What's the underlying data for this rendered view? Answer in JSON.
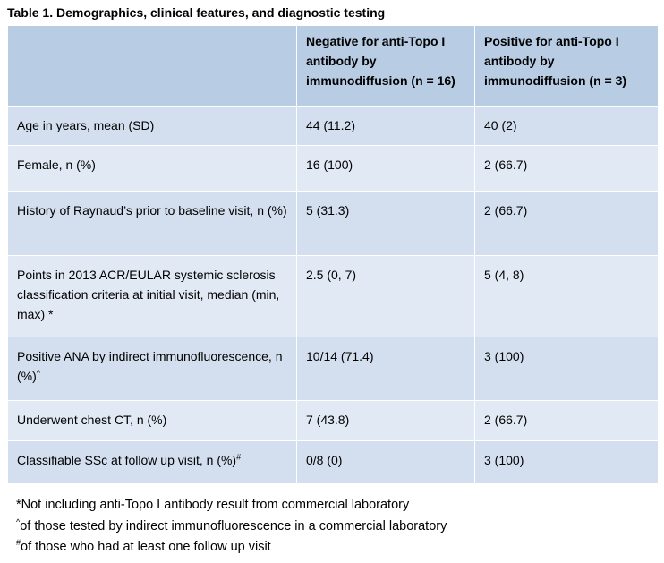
{
  "title": "Table 1. Demographics, clinical features, and diagnostic testing",
  "table": {
    "header": [
      "Negative for anti-Topo I antibody by immunodiffusion (n = 16)",
      "Positive for anti-Topo I antibody by immunodiffusion (n = 3)"
    ],
    "rows": [
      {
        "label": "Age in years, mean (SD)",
        "values": [
          "44 (11.2)",
          "40 (2)"
        ]
      },
      {
        "label": "Female, n (%)",
        "values": [
          "16 (100)",
          "2 (66.7)"
        ]
      },
      {
        "label": "History of Raynaud’s prior to baseline visit, n (%)",
        "values": [
          "5 (31.3)",
          "2 (66.7)"
        ]
      },
      {
        "label": "Points in 2013 ACR/EULAR systemic sclerosis classification criteria at initial visit, median (min, max) *",
        "values": [
          "2.5 (0, 7)",
          "5 (4, 8)"
        ]
      },
      {
        "label": "Positive ANA by indirect immunofluorescence, n (%)",
        "sup": "^",
        "values": [
          "10/14 (71.4)",
          "3 (100)"
        ]
      },
      {
        "label": "Underwent chest CT, n (%)",
        "values": [
          "7 (43.8)",
          "2 (66.7)"
        ]
      },
      {
        "label": "Classifiable SSc at follow up visit, n (%)",
        "sup": "#",
        "values": [
          "0/8 (0)",
          "3 (100)"
        ]
      }
    ]
  },
  "footnotes": [
    {
      "text": "*Not including anti-Topo I antibody result from commercial laboratory"
    },
    {
      "mark": "^",
      "text": "of those tested by indirect immunofluorescence in a commercial laboratory"
    },
    {
      "mark": "#",
      "text": "of those who had at least one follow up visit"
    }
  ]
}
